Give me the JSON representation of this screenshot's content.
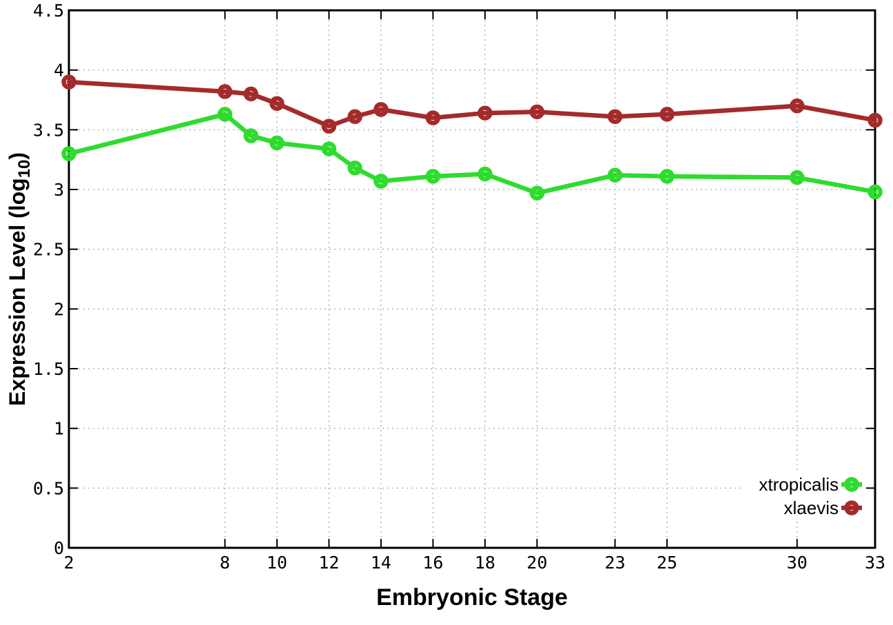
{
  "figure": {
    "background": "#ffffff",
    "axis_color": "#000000",
    "grid_color": "#b5b5b5",
    "text_color": "#000000"
  },
  "chart_data": {
    "type": "line",
    "title": "",
    "xlabel": "Embryonic Stage",
    "ylabel": "Expression Level (log10)",
    "ylabel_parts": {
      "main": "Expression Level (log",
      "sub": "10",
      "end": ")"
    },
    "xlim": [
      2,
      33
    ],
    "ylim": [
      0,
      4.5
    ],
    "x_ticks": [
      "2",
      "8",
      "10",
      "12",
      "14",
      "16",
      "18",
      "20",
      "23",
      "25",
      "30",
      "33"
    ],
    "y_ticks": [
      "0",
      "0.5",
      "1",
      "1.5",
      "2",
      "2.5",
      "3",
      "3.5",
      "4",
      "4.5"
    ],
    "grid": true,
    "legend_position": "bottom-right",
    "marker": "open-circle",
    "x": [
      2,
      8,
      9,
      10,
      12,
      13,
      14,
      16,
      18,
      20,
      23,
      25,
      30,
      33
    ],
    "series": [
      {
        "name": "xtropicalis",
        "color": "#2edb2e",
        "values": [
          3.3,
          3.63,
          3.45,
          3.39,
          3.34,
          3.18,
          3.07,
          3.11,
          3.13,
          2.97,
          3.12,
          3.11,
          3.1,
          2.98
        ]
      },
      {
        "name": "xlaevis",
        "color": "#a42b2b",
        "values": [
          3.9,
          3.82,
          3.8,
          3.72,
          3.53,
          3.61,
          3.67,
          3.6,
          3.64,
          3.65,
          3.61,
          3.63,
          3.7,
          3.58
        ]
      }
    ]
  }
}
